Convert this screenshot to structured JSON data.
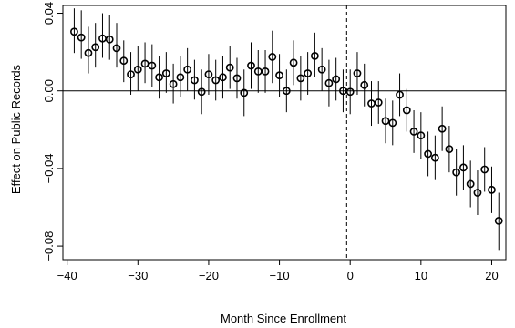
{
  "chart_data": {
    "type": "scatter",
    "title": "",
    "xlabel": "Month Since Enrollment",
    "ylabel": "Effect on Public Records",
    "xlim": [
      -40.6,
      22.0
    ],
    "ylim": [
      -0.087,
      0.044
    ],
    "x_ticks": [
      -40,
      -30,
      -20,
      -10,
      0,
      10,
      20
    ],
    "x_tick_labels": [
      "−40",
      "−30",
      "−20",
      "−10",
      "0",
      "10",
      "20"
    ],
    "y_ticks": [
      -0.08,
      -0.04,
      0.0,
      0.04
    ],
    "y_tick_labels": [
      "−0.08",
      "−0.04",
      "0.00",
      "0.04"
    ],
    "reference_lines": {
      "horizontal_y": 0,
      "vertical_x": -0.5,
      "vertical_style": "dashed"
    },
    "marker": "open circle",
    "error_bars": "vertical, 95% interval",
    "points": [
      {
        "x": -39,
        "y": 0.0305,
        "lo": 0.0195,
        "hi": 0.0425
      },
      {
        "x": -38,
        "y": 0.0275,
        "lo": 0.0165,
        "hi": 0.0415
      },
      {
        "x": -37,
        "y": 0.0195,
        "lo": 0.009,
        "hi": 0.033
      },
      {
        "x": -36,
        "y": 0.0225,
        "lo": 0.012,
        "hi": 0.035
      },
      {
        "x": -35,
        "y": 0.027,
        "lo": 0.017,
        "hi": 0.04
      },
      {
        "x": -34,
        "y": 0.0265,
        "lo": 0.016,
        "hi": 0.039
      },
      {
        "x": -33,
        "y": 0.022,
        "lo": 0.012,
        "hi": 0.035
      },
      {
        "x": -32,
        "y": 0.0155,
        "lo": 0.0045,
        "hi": 0.026
      },
      {
        "x": -31,
        "y": 0.0085,
        "lo": -0.002,
        "hi": 0.02
      },
      {
        "x": -30,
        "y": 0.011,
        "lo": 0.0,
        "hi": 0.023
      },
      {
        "x": -29,
        "y": 0.014,
        "lo": 0.004,
        "hi": 0.025
      },
      {
        "x": -28,
        "y": 0.013,
        "lo": 0.002,
        "hi": 0.024
      },
      {
        "x": -27,
        "y": 0.007,
        "lo": -0.004,
        "hi": 0.018
      },
      {
        "x": -26,
        "y": 0.009,
        "lo": -0.001,
        "hi": 0.02
      },
      {
        "x": -25,
        "y": 0.0035,
        "lo": -0.0065,
        "hi": 0.014
      },
      {
        "x": -24,
        "y": 0.007,
        "lo": -0.003,
        "hi": 0.018
      },
      {
        "x": -23,
        "y": 0.011,
        "lo": 0.0,
        "hi": 0.022
      },
      {
        "x": -22,
        "y": 0.0055,
        "lo": -0.0045,
        "hi": 0.016
      },
      {
        "x": -21,
        "y": -0.0005,
        "lo": -0.012,
        "hi": 0.011
      },
      {
        "x": -20,
        "y": 0.0085,
        "lo": -0.002,
        "hi": 0.019
      },
      {
        "x": -19,
        "y": 0.0055,
        "lo": -0.005,
        "hi": 0.016
      },
      {
        "x": -18,
        "y": 0.007,
        "lo": -0.004,
        "hi": 0.018
      },
      {
        "x": -17,
        "y": 0.012,
        "lo": 0.001,
        "hi": 0.023
      },
      {
        "x": -16,
        "y": 0.0065,
        "lo": -0.004,
        "hi": 0.017
      },
      {
        "x": -15,
        "y": -0.001,
        "lo": -0.013,
        "hi": 0.011
      },
      {
        "x": -14,
        "y": 0.013,
        "lo": 0.001,
        "hi": 0.025
      },
      {
        "x": -13,
        "y": 0.01,
        "lo": -0.001,
        "hi": 0.021
      },
      {
        "x": -12,
        "y": 0.01,
        "lo": -0.001,
        "hi": 0.021
      },
      {
        "x": -11,
        "y": 0.0175,
        "lo": 0.004,
        "hi": 0.031
      },
      {
        "x": -10,
        "y": 0.008,
        "lo": -0.003,
        "hi": 0.019
      },
      {
        "x": -9,
        "y": 0.0,
        "lo": -0.011,
        "hi": 0.011
      },
      {
        "x": -8,
        "y": 0.0145,
        "lo": 0.003,
        "hi": 0.026
      },
      {
        "x": -7,
        "y": 0.0065,
        "lo": -0.005,
        "hi": 0.018
      },
      {
        "x": -6,
        "y": 0.009,
        "lo": -0.002,
        "hi": 0.02
      },
      {
        "x": -5,
        "y": 0.018,
        "lo": 0.007,
        "hi": 0.03
      },
      {
        "x": -4,
        "y": 0.011,
        "lo": 0.0,
        "hi": 0.022
      },
      {
        "x": -3,
        "y": 0.004,
        "lo": -0.008,
        "hi": 0.016
      },
      {
        "x": -2,
        "y": 0.006,
        "lo": -0.005,
        "hi": 0.017
      },
      {
        "x": -1,
        "y": 0.0,
        "lo": -0.011,
        "hi": 0.011
      },
      {
        "x": 0,
        "y": -0.0005,
        "lo": -0.012,
        "hi": 0.011
      },
      {
        "x": 1,
        "y": 0.009,
        "lo": -0.002,
        "hi": 0.02
      },
      {
        "x": 2,
        "y": 0.003,
        "lo": -0.008,
        "hi": 0.014
      },
      {
        "x": 3,
        "y": -0.0065,
        "lo": -0.018,
        "hi": 0.005
      },
      {
        "x": 4,
        "y": -0.006,
        "lo": -0.017,
        "hi": 0.005
      },
      {
        "x": 5,
        "y": -0.0155,
        "lo": -0.027,
        "hi": -0.004
      },
      {
        "x": 6,
        "y": -0.0165,
        "lo": -0.028,
        "hi": -0.005
      },
      {
        "x": 7,
        "y": -0.002,
        "lo": -0.013,
        "hi": 0.009
      },
      {
        "x": 8,
        "y": -0.01,
        "lo": -0.021,
        "hi": 0.001
      },
      {
        "x": 9,
        "y": -0.021,
        "lo": -0.032,
        "hi": -0.01
      },
      {
        "x": 10,
        "y": -0.023,
        "lo": -0.035,
        "hi": -0.011
      },
      {
        "x": 11,
        "y": -0.0325,
        "lo": -0.044,
        "hi": -0.021
      },
      {
        "x": 12,
        "y": -0.0345,
        "lo": -0.046,
        "hi": -0.023
      },
      {
        "x": 13,
        "y": -0.0195,
        "lo": -0.031,
        "hi": -0.008
      },
      {
        "x": 14,
        "y": -0.03,
        "lo": -0.042,
        "hi": -0.018
      },
      {
        "x": 15,
        "y": -0.042,
        "lo": -0.054,
        "hi": -0.03
      },
      {
        "x": 16,
        "y": -0.0395,
        "lo": -0.051,
        "hi": -0.028
      },
      {
        "x": 17,
        "y": -0.048,
        "lo": -0.06,
        "hi": -0.036
      },
      {
        "x": 18,
        "y": -0.0525,
        "lo": -0.064,
        "hi": -0.041
      },
      {
        "x": 19,
        "y": -0.0405,
        "lo": -0.052,
        "hi": -0.029
      },
      {
        "x": 20,
        "y": -0.051,
        "lo": -0.063,
        "hi": -0.039
      },
      {
        "x": 21,
        "y": -0.067,
        "lo": -0.082,
        "hi": -0.0525
      }
    ]
  }
}
